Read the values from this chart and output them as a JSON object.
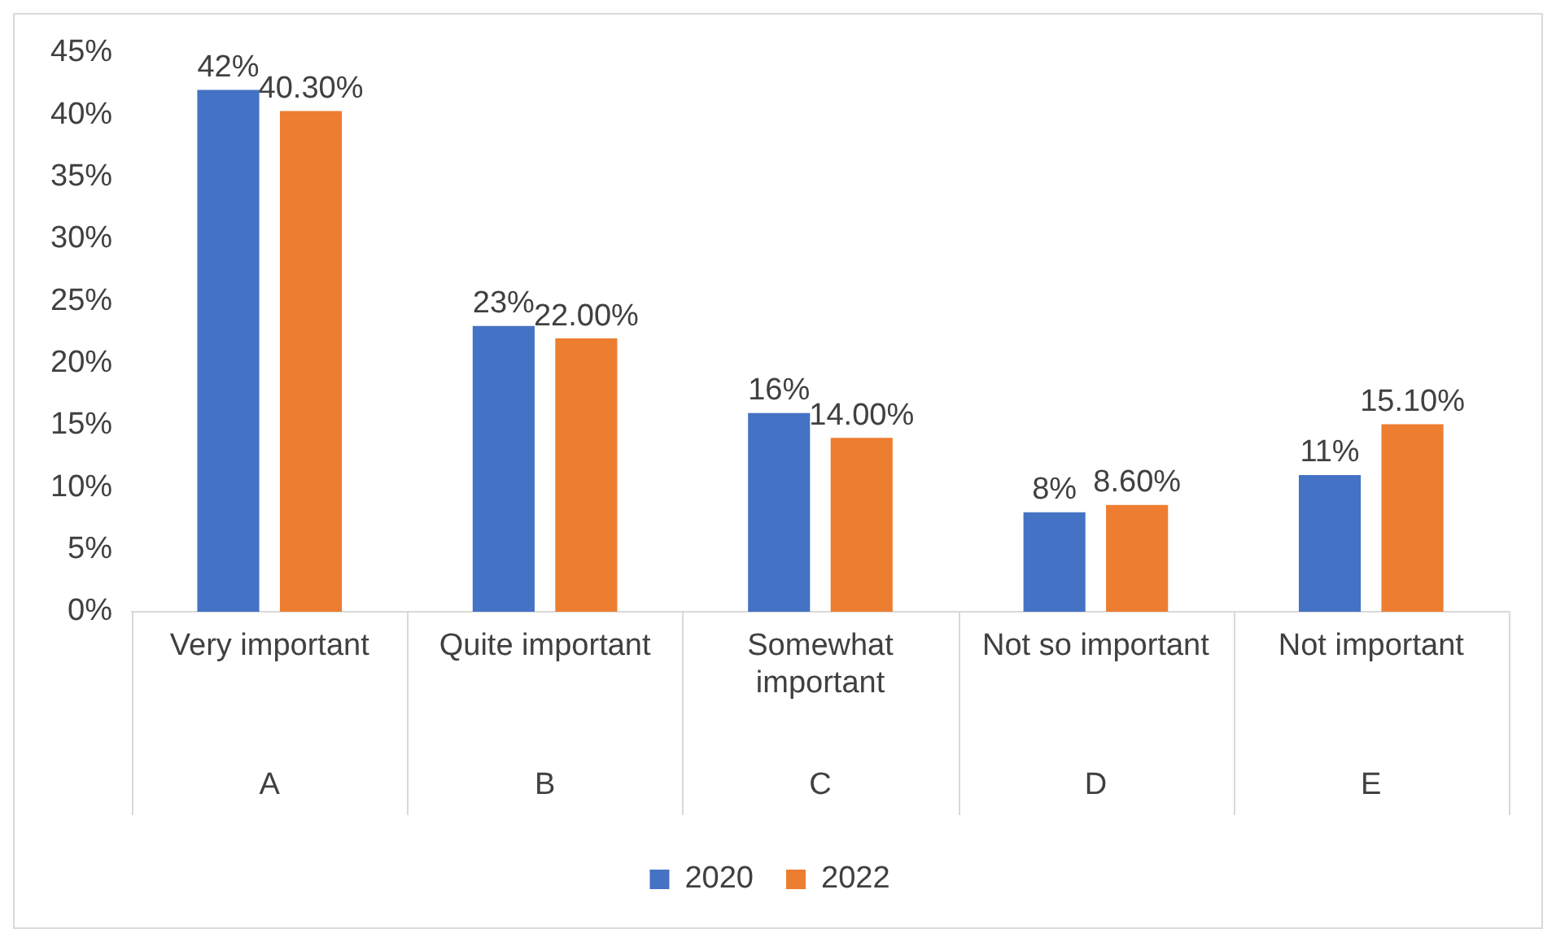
{
  "chart_data": {
    "type": "bar",
    "categories": [
      "Very important",
      "Quite important",
      "Somewhat important",
      "Not so important",
      "Not important"
    ],
    "series": [
      {
        "name": "2020",
        "color": "#4472c4",
        "values": [
          42,
          23,
          16,
          8,
          11
        ],
        "value_labels": [
          "42%",
          "23%",
          "16%",
          "8%",
          "11%"
        ]
      },
      {
        "name": "2022",
        "color": "#ed7d31",
        "values": [
          40.3,
          22,
          14,
          8.6,
          15.1
        ],
        "value_labels": [
          "40.30%",
          "22.00%",
          "14.00%",
          "8.60%",
          "15.10%"
        ]
      }
    ],
    "annotations": [
      "A",
      "B",
      "C",
      "D",
      "E"
    ],
    "ylim": [
      0,
      45
    ],
    "yticks": [
      {
        "value": 0,
        "label": "0%"
      },
      {
        "value": 5,
        "label": "5%"
      },
      {
        "value": 10,
        "label": "10%"
      },
      {
        "value": 15,
        "label": "15%"
      },
      {
        "value": 20,
        "label": "20%"
      },
      {
        "value": 25,
        "label": "25%"
      },
      {
        "value": 30,
        "label": "30%"
      },
      {
        "value": 35,
        "label": "35%"
      },
      {
        "value": 40,
        "label": "40%"
      },
      {
        "value": 45,
        "label": "45%"
      }
    ],
    "grid": false,
    "legend": "bottom"
  }
}
